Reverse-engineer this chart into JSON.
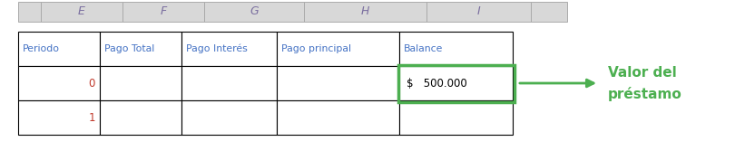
{
  "col_headers": [
    "",
    "E",
    "F",
    "G",
    "H",
    "I",
    ""
  ],
  "col_header_bg": "#d8d8d8",
  "col_header_text_color": "#7b6fa0",
  "table_headers": [
    "Periodo",
    "Pago Total",
    "Pago Interés",
    "Pago principal",
    "Balance"
  ],
  "table_header_text_color": "#4472c4",
  "row0_label": "0",
  "row1_label": "1",
  "row_label_color": "#c0392b",
  "balance_value": "$   500.000",
  "balance_cell_border_color": "#4caf50",
  "arrow_color": "#4caf50",
  "annotation_line1": "Valor del",
  "annotation_line2": "préstamo",
  "annotation_color": "#4caf50",
  "background_color": "#ffffff",
  "cell_border_color": "#000000",
  "header_border_color": "#aaaaaa",
  "figsize": [
    8.21,
    1.67
  ],
  "dpi": 100
}
